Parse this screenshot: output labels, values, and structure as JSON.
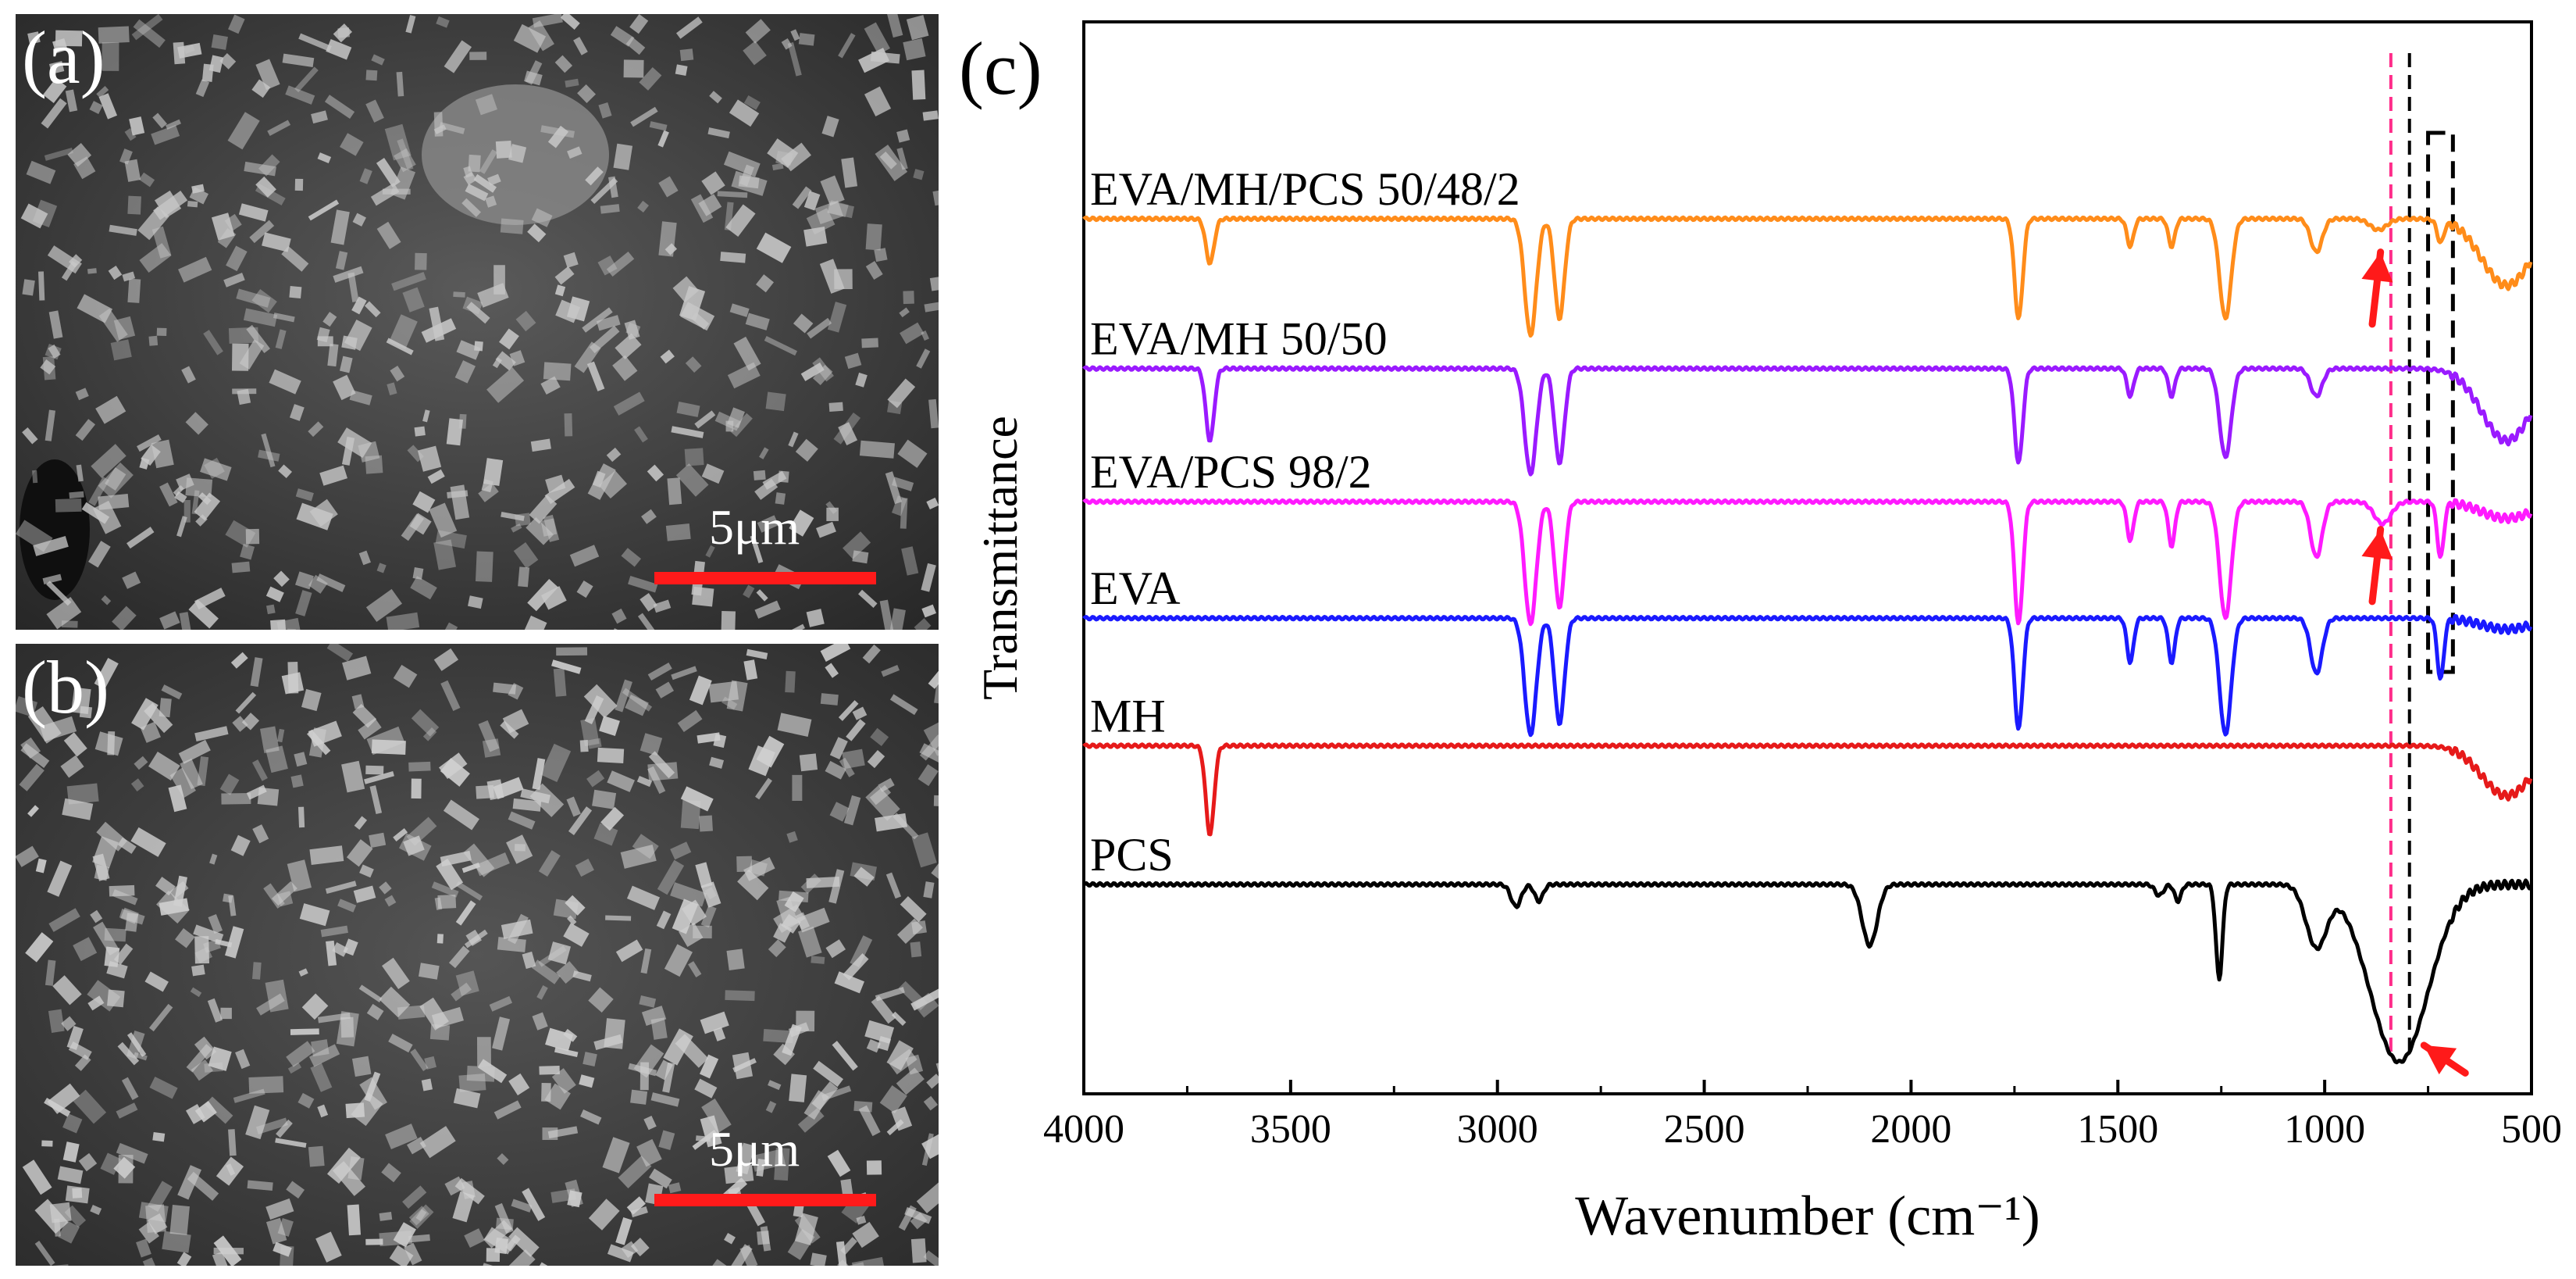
{
  "panels": {
    "a": {
      "label": "(a)",
      "scale_text": "5μm",
      "description_icon": "sem-micrograph"
    },
    "b": {
      "label": "(b)",
      "scale_text": "5μm",
      "description_icon": "sem-micrograph"
    }
  },
  "colors": {
    "scale_bar": "#ff1a1a",
    "arrow": "#ff1a1a",
    "dash_pink": "#ff2d8a",
    "dash_black": "#000000"
  },
  "chart_data": {
    "type": "line",
    "panel_label": "(c)",
    "title": "",
    "xlabel": "Wavenumber (cm⁻¹)",
    "ylabel": "Transmittance",
    "xlim": [
      4000,
      500
    ],
    "x_reversed": true,
    "xticks": [
      4000,
      3500,
      3000,
      2500,
      2000,
      1500,
      1000,
      500
    ],
    "yticks": [],
    "grid": false,
    "legend": "inline-labels",
    "series": [
      {
        "name": "EVA/MH/PCS 50/48/2",
        "color": "#ff8c1a",
        "baseline": 6.0,
        "bands": [
          [
            3695,
            0.4,
            10
          ],
          [
            2920,
            1.05,
            14
          ],
          [
            2850,
            0.9,
            12
          ],
          [
            1740,
            0.9,
            10
          ],
          [
            1470,
            0.25,
            8
          ],
          [
            1370,
            0.25,
            8
          ],
          [
            1240,
            0.9,
            14
          ],
          [
            1020,
            0.3,
            14
          ],
          [
            870,
            0.1,
            20
          ],
          [
            720,
            0.2,
            8
          ],
          [
            560,
            0.6,
            60
          ]
        ]
      },
      {
        "name": "EVA/MH 50/50",
        "color": "#9a1aff",
        "baseline": 4.65,
        "bands": [
          [
            3695,
            0.65,
            10
          ],
          [
            2920,
            0.95,
            14
          ],
          [
            2850,
            0.85,
            12
          ],
          [
            1740,
            0.85,
            10
          ],
          [
            1470,
            0.25,
            8
          ],
          [
            1370,
            0.25,
            8
          ],
          [
            1240,
            0.8,
            14
          ],
          [
            1020,
            0.25,
            14
          ],
          [
            560,
            0.65,
            60
          ]
        ]
      },
      {
        "name": "EVA/PCS 98/2",
        "color": "#ff1aff",
        "baseline": 3.45,
        "bands": [
          [
            2920,
            1.1,
            14
          ],
          [
            2850,
            0.95,
            12
          ],
          [
            1740,
            1.1,
            10
          ],
          [
            1470,
            0.35,
            8
          ],
          [
            1370,
            0.4,
            8
          ],
          [
            1240,
            1.05,
            14
          ],
          [
            1020,
            0.5,
            14
          ],
          [
            860,
            0.2,
            20
          ],
          [
            720,
            0.5,
            8
          ],
          [
            560,
            0.15,
            60
          ]
        ]
      },
      {
        "name": "EVA",
        "color": "#1a1aff",
        "baseline": 2.4,
        "bands": [
          [
            2920,
            1.05,
            14
          ],
          [
            2850,
            0.95,
            12
          ],
          [
            1740,
            1.0,
            10
          ],
          [
            1470,
            0.4,
            8
          ],
          [
            1370,
            0.4,
            8
          ],
          [
            1240,
            1.05,
            14
          ],
          [
            1020,
            0.5,
            14
          ],
          [
            720,
            0.55,
            8
          ],
          [
            560,
            0.1,
            60
          ]
        ]
      },
      {
        "name": "MH",
        "color": "#e61a1a",
        "baseline": 1.25,
        "bands": [
          [
            3695,
            0.8,
            10
          ],
          [
            560,
            0.45,
            60
          ]
        ]
      },
      {
        "name": "PCS",
        "color": "#000000",
        "baseline": 0.0,
        "bands": [
          [
            2955,
            0.2,
            12
          ],
          [
            2900,
            0.15,
            10
          ],
          [
            2100,
            0.55,
            18
          ],
          [
            1400,
            0.1,
            10
          ],
          [
            1355,
            0.15,
            8
          ],
          [
            1255,
            0.85,
            8
          ],
          [
            1020,
            0.55,
            25
          ],
          [
            820,
            1.6,
            70
          ]
        ]
      }
    ],
    "annotations": {
      "dashed_lines_wavenumber": [
        {
          "x": 840,
          "color": "pink"
        },
        {
          "x": 795,
          "color": "black"
        }
      ],
      "dashed_box_wavenumber": [
        750,
        690
      ],
      "arrows": [
        "EVA/MH/PCS 50/48/2 ~860",
        "EVA/PCS 98/2 ~860",
        "PCS ~780"
      ]
    }
  }
}
